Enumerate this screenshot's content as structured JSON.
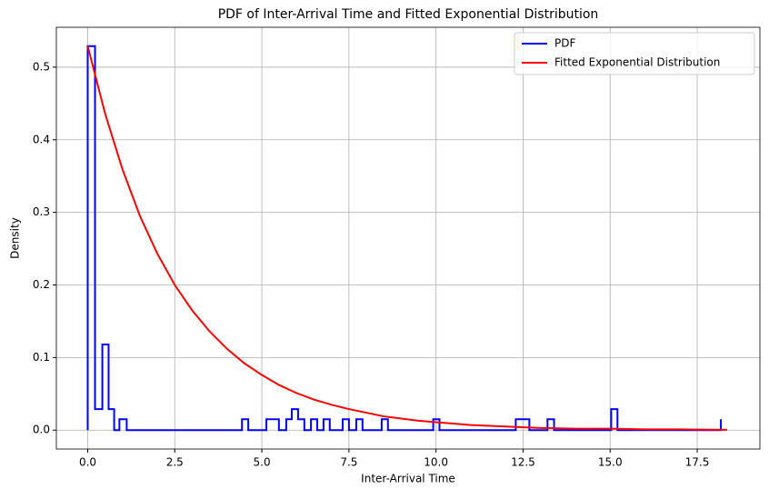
{
  "chart_data": {
    "type": "line",
    "title": "PDF of Inter-Arrival Time and Fitted Exponential Distribution",
    "xlabel": "Inter-Arrival Time",
    "ylabel": "Density",
    "xlim": [
      -0.9,
      19.3
    ],
    "ylim": [
      -0.026,
      0.555
    ],
    "xticks": [
      {
        "value": 0,
        "label": "0.0"
      },
      2.5,
      {
        "value": 5,
        "label": "5.0"
      },
      7.5,
      {
        "value": 10,
        "label": "10.0"
      },
      12.5,
      {
        "value": 15,
        "label": "15.0"
      },
      17.5
    ],
    "yticks": [
      {
        "value": 0,
        "label": "0.0"
      },
      0.1,
      0.2,
      0.3,
      0.4,
      0.5
    ],
    "grid": true,
    "legend": "upper right",
    "series": [
      {
        "name": "PDF",
        "color": "#0000ff",
        "step": true,
        "x": [
          0,
          0.21,
          0.42,
          0.6,
          0.76,
          0.91,
          1.12,
          4.43,
          4.61,
          5.13,
          5.49,
          5.7,
          5.86,
          6.04,
          6.22,
          6.41,
          6.59,
          6.77,
          6.95,
          7.32,
          7.5,
          7.71,
          7.89,
          8.44,
          8.62,
          9.92,
          10.1,
          12.29,
          12.68,
          13.2,
          13.39,
          15.03,
          15.21,
          18.18
        ],
        "values": [
          0.529,
          0.029,
          0.118,
          0.029,
          0,
          0.015,
          0,
          0.015,
          0,
          0.015,
          0,
          0.015,
          0.029,
          0.015,
          0,
          0.015,
          0,
          0.015,
          0,
          0.015,
          0,
          0.015,
          0,
          0.015,
          0,
          0.015,
          0,
          0.015,
          0,
          0.015,
          0,
          0.029,
          0,
          0.015
        ]
      },
      {
        "name": "Fitted Exponential Distribution",
        "color": "#ff0000",
        "x": [
          0,
          0.5,
          1,
          1.5,
          2,
          2.5,
          3,
          3.5,
          4,
          4.5,
          5,
          5.5,
          6,
          6.5,
          7,
          7.5,
          8,
          8.5,
          9,
          9.5,
          10,
          11,
          12,
          13,
          14,
          15,
          16,
          17,
          18.36
        ],
        "values": [
          0.529,
          0.436,
          0.359,
          0.295,
          0.243,
          0.2,
          0.165,
          0.136,
          0.112,
          0.092,
          0.076,
          0.062,
          0.051,
          0.042,
          0.035,
          0.029,
          0.024,
          0.019,
          0.016,
          0.013,
          0.011,
          0.007,
          0.005,
          0.003,
          0.002,
          0.002,
          0.001,
          0.001,
          0.0004
        ]
      }
    ]
  }
}
